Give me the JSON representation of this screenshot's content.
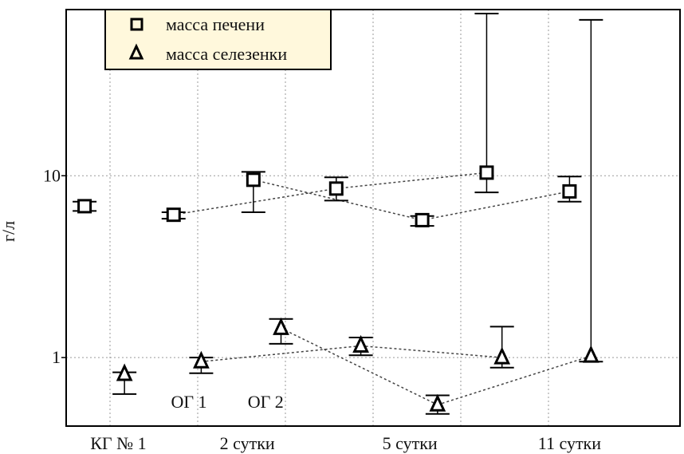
{
  "chart_data": {
    "type": "scatter",
    "ylabel": "г/л",
    "yscale": "log",
    "ylim": [
      0.42,
      82
    ],
    "yticks": [
      "1",
      "10"
    ],
    "xlim": [
      0,
      100
    ],
    "xticks": [
      {
        "label": "КГ № 1",
        "x": 8.5
      },
      {
        "label": "2 сутки",
        "x": 29.5
      },
      {
        "label": "5 сутки",
        "x": 56
      },
      {
        "label": "11 сутки",
        "x": 82
      }
    ],
    "group_labels": [
      {
        "label": "ОГ 1",
        "x": 20,
        "y": 0.57
      },
      {
        "label": "ОГ 2",
        "x": 32.5,
        "y": 0.57
      }
    ],
    "grid": true,
    "legend_position": "top-left",
    "series": [
      {
        "name": "масса печени",
        "marker": "square",
        "points": [
          {
            "x": 3,
            "y": 6.8,
            "lo": 6.4,
            "hi": 7.2
          },
          {
            "x": 17.5,
            "y": 6.1,
            "lo": 5.8,
            "hi": 6.3
          },
          {
            "x": 30.5,
            "y": 9.5,
            "lo": 6.3,
            "hi": 10.5
          },
          {
            "x": 44,
            "y": 8.5,
            "lo": 7.3,
            "hi": 9.8
          },
          {
            "x": 58,
            "y": 5.7,
            "lo": 5.3,
            "hi": 6.0
          },
          {
            "x": 68.5,
            "y": 10.4,
            "lo": 8.1,
            "hi": 78
          },
          {
            "x": 82,
            "y": 8.2,
            "lo": 7.2,
            "hi": 9.9
          }
        ],
        "connections": [
          [
            1,
            3
          ],
          [
            3,
            5
          ],
          [
            2,
            4
          ],
          [
            4,
            6
          ]
        ]
      },
      {
        "name": "масса селезенки",
        "marker": "triangle",
        "points": [
          {
            "x": 9.5,
            "y": 0.81,
            "lo": 0.63,
            "hi": 0.83
          },
          {
            "x": 22,
            "y": 0.95,
            "lo": 0.82,
            "hi": 1.0
          },
          {
            "x": 35,
            "y": 1.45,
            "lo": 1.19,
            "hi": 1.63
          },
          {
            "x": 48,
            "y": 1.16,
            "lo": 1.03,
            "hi": 1.29
          },
          {
            "x": 60.5,
            "y": 0.55,
            "lo": 0.49,
            "hi": 0.62
          },
          {
            "x": 71,
            "y": 1.0,
            "lo": 0.88,
            "hi": 1.48
          },
          {
            "x": 85.5,
            "y": 1.02,
            "lo": 0.95,
            "hi": 72
          }
        ],
        "connections": [
          [
            1,
            3
          ],
          [
            3,
            5
          ],
          [
            2,
            4
          ],
          [
            4,
            6
          ]
        ]
      }
    ]
  }
}
